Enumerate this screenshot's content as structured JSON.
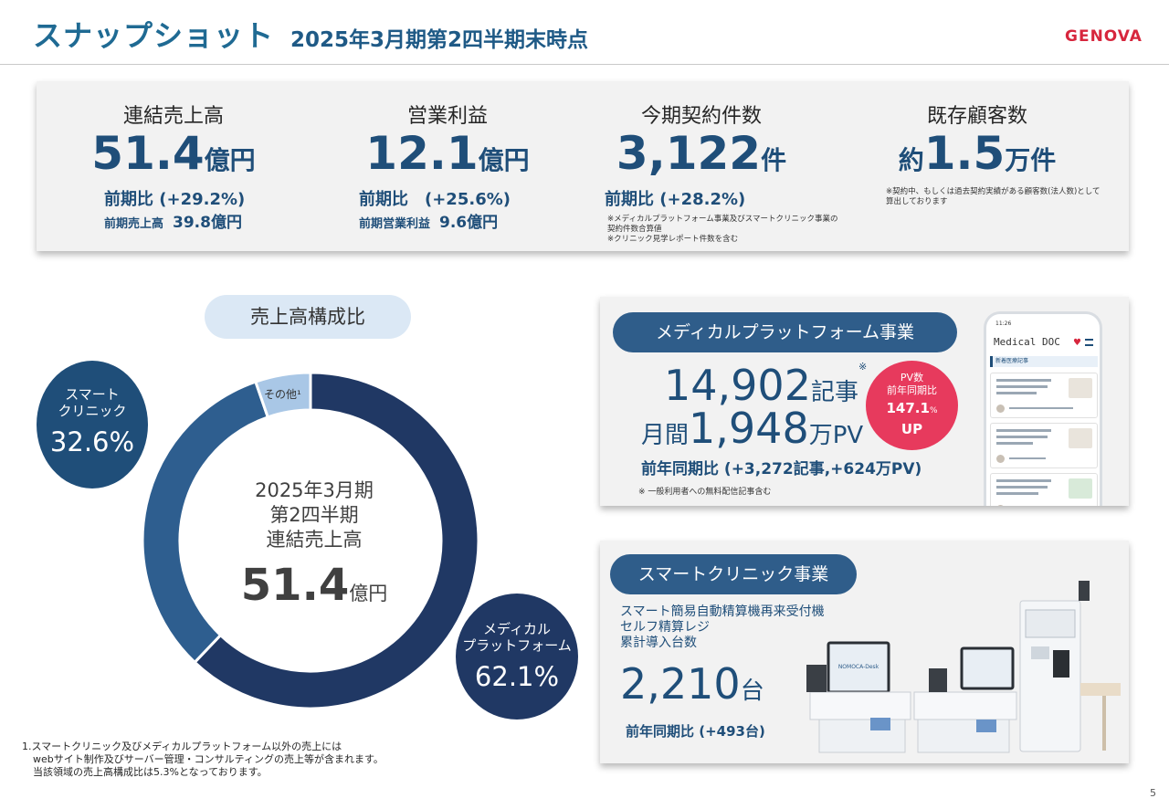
{
  "header": {
    "title": "スナップショット",
    "subtitle": "2025年3月期第2四半期末時点",
    "logo": "GENOVA"
  },
  "kpis": [
    {
      "label": "連結売上高",
      "value": "51.4",
      "unit": "億円",
      "cmp": "前期比 (+29.2%)",
      "prev_label": "前期売上高",
      "prev_value": "39.8億円"
    },
    {
      "label": "営業利益",
      "value": "12.1",
      "unit": "億円",
      "cmp": "前期比　(+25.6%)",
      "prev_label": "前期営業利益",
      "prev_value": "9.6億円"
    },
    {
      "label": "今期契約件数",
      "value": "3,122",
      "unit": "件",
      "cmp": "前期比 (+28.2%)",
      "note1": "※メディカルプラットフォーム事業及びスマートクリニック事業の",
      "note2": "契約件数合算値",
      "note3": "※クリニック見学レポート件数を含む"
    },
    {
      "label": "既存顧客数",
      "prefix": "約",
      "value": "1.5",
      "unit": "万件",
      "note1": "※契約中、もしくは過去契約実績がある顧客数(法人数)として",
      "note2": "算出しております"
    }
  ],
  "sales": {
    "pill": "売上高構成比",
    "center_line1": "2025年3月期",
    "center_line2": "第2四半期",
    "center_line3": "連結売上高",
    "center_value": "51.4",
    "center_unit": "億円",
    "other_label": "その他¹",
    "smart_label1": "スマート",
    "smart_label2": "クリニック",
    "smart_value": "32.6%",
    "med_label1": "メディカル",
    "med_label2": "プラットフォーム",
    "med_value": "62.1%",
    "footnote1": "1.スマートクリニック及びメディカルプラットフォーム以外の売上には",
    "footnote2": "webサイト制作及びサーバー管理・コンサルティングの売上等が含まれます。",
    "footnote3": "当該領域の売上高構成比は5.3%となっております。"
  },
  "chart_data": {
    "type": "pie",
    "categories": [
      "メディカルプラットフォーム",
      "スマートクリニック",
      "その他"
    ],
    "values": [
      62.1,
      32.6,
      5.3
    ],
    "colors": [
      "#203864",
      "#2e5e8f",
      "#a9c7e6"
    ]
  },
  "medical": {
    "pill": "メディカルプラットフォーム事業",
    "articles": "14,902",
    "articles_unit": "記事",
    "articles_note": "※",
    "pv_prefix": "月間",
    "pv": "1,948",
    "pv_unit": "万PV",
    "cmp": "前年同期比 (+3,272記事,+624万PV)",
    "note": "※ 一般利用者への無料配信記事含む",
    "pv_badge_line1": "PV数",
    "pv_badge_line2": "前年同期比",
    "pv_badge_value": "147.1",
    "pv_badge_pct": "%",
    "pv_badge_line3": "UP",
    "phone_title": "Medical DOC",
    "phone_section": "新着医療記事",
    "phone_time": "11:26"
  },
  "smart": {
    "pill": "スマートクリニック事業",
    "desc1": "スマート簡易自動精算機再来受付機",
    "desc2": "セルフ精算レジ",
    "desc3": "累計導入台数",
    "value": "2,210",
    "unit": "台",
    "cmp": "前年同期比 (+493台)",
    "machine_label": "NOMOCA-Desk"
  },
  "page_number": "5"
}
